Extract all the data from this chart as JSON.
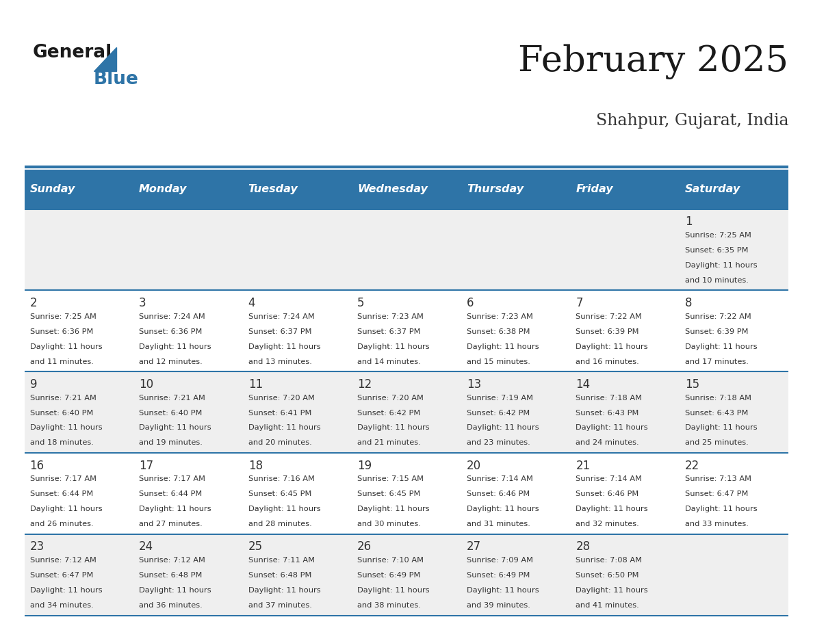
{
  "title": "February 2025",
  "subtitle": "Shahpur, Gujarat, India",
  "header_bg_color": "#2E74A7",
  "header_text_color": "#FFFFFF",
  "day_names": [
    "Sunday",
    "Monday",
    "Tuesday",
    "Wednesday",
    "Thursday",
    "Friday",
    "Saturday"
  ],
  "bg_color": "#FFFFFF",
  "cell_bg_even": "#EFEFEF",
  "cell_bg_odd": "#FFFFFF",
  "separator_color": "#2E74A7",
  "day_num_color": "#333333",
  "info_text_color": "#333333",
  "calendar_data": [
    [
      null,
      null,
      null,
      null,
      null,
      null,
      {
        "day": 1,
        "sunrise": "7:25 AM",
        "sunset": "6:35 PM",
        "daylight_h": "11 hours",
        "daylight_m": "and 10 minutes."
      }
    ],
    [
      {
        "day": 2,
        "sunrise": "7:25 AM",
        "sunset": "6:36 PM",
        "daylight_h": "11 hours",
        "daylight_m": "and 11 minutes."
      },
      {
        "day": 3,
        "sunrise": "7:24 AM",
        "sunset": "6:36 PM",
        "daylight_h": "11 hours",
        "daylight_m": "and 12 minutes."
      },
      {
        "day": 4,
        "sunrise": "7:24 AM",
        "sunset": "6:37 PM",
        "daylight_h": "11 hours",
        "daylight_m": "and 13 minutes."
      },
      {
        "day": 5,
        "sunrise": "7:23 AM",
        "sunset": "6:37 PM",
        "daylight_h": "11 hours",
        "daylight_m": "and 14 minutes."
      },
      {
        "day": 6,
        "sunrise": "7:23 AM",
        "sunset": "6:38 PM",
        "daylight_h": "11 hours",
        "daylight_m": "and 15 minutes."
      },
      {
        "day": 7,
        "sunrise": "7:22 AM",
        "sunset": "6:39 PM",
        "daylight_h": "11 hours",
        "daylight_m": "and 16 minutes."
      },
      {
        "day": 8,
        "sunrise": "7:22 AM",
        "sunset": "6:39 PM",
        "daylight_h": "11 hours",
        "daylight_m": "and 17 minutes."
      }
    ],
    [
      {
        "day": 9,
        "sunrise": "7:21 AM",
        "sunset": "6:40 PM",
        "daylight_h": "11 hours",
        "daylight_m": "and 18 minutes."
      },
      {
        "day": 10,
        "sunrise": "7:21 AM",
        "sunset": "6:40 PM",
        "daylight_h": "11 hours",
        "daylight_m": "and 19 minutes."
      },
      {
        "day": 11,
        "sunrise": "7:20 AM",
        "sunset": "6:41 PM",
        "daylight_h": "11 hours",
        "daylight_m": "and 20 minutes."
      },
      {
        "day": 12,
        "sunrise": "7:20 AM",
        "sunset": "6:42 PM",
        "daylight_h": "11 hours",
        "daylight_m": "and 21 minutes."
      },
      {
        "day": 13,
        "sunrise": "7:19 AM",
        "sunset": "6:42 PM",
        "daylight_h": "11 hours",
        "daylight_m": "and 23 minutes."
      },
      {
        "day": 14,
        "sunrise": "7:18 AM",
        "sunset": "6:43 PM",
        "daylight_h": "11 hours",
        "daylight_m": "and 24 minutes."
      },
      {
        "day": 15,
        "sunrise": "7:18 AM",
        "sunset": "6:43 PM",
        "daylight_h": "11 hours",
        "daylight_m": "and 25 minutes."
      }
    ],
    [
      {
        "day": 16,
        "sunrise": "7:17 AM",
        "sunset": "6:44 PM",
        "daylight_h": "11 hours",
        "daylight_m": "and 26 minutes."
      },
      {
        "day": 17,
        "sunrise": "7:17 AM",
        "sunset": "6:44 PM",
        "daylight_h": "11 hours",
        "daylight_m": "and 27 minutes."
      },
      {
        "day": 18,
        "sunrise": "7:16 AM",
        "sunset": "6:45 PM",
        "daylight_h": "11 hours",
        "daylight_m": "and 28 minutes."
      },
      {
        "day": 19,
        "sunrise": "7:15 AM",
        "sunset": "6:45 PM",
        "daylight_h": "11 hours",
        "daylight_m": "and 30 minutes."
      },
      {
        "day": 20,
        "sunrise": "7:14 AM",
        "sunset": "6:46 PM",
        "daylight_h": "11 hours",
        "daylight_m": "and 31 minutes."
      },
      {
        "day": 21,
        "sunrise": "7:14 AM",
        "sunset": "6:46 PM",
        "daylight_h": "11 hours",
        "daylight_m": "and 32 minutes."
      },
      {
        "day": 22,
        "sunrise": "7:13 AM",
        "sunset": "6:47 PM",
        "daylight_h": "11 hours",
        "daylight_m": "and 33 minutes."
      }
    ],
    [
      {
        "day": 23,
        "sunrise": "7:12 AM",
        "sunset": "6:47 PM",
        "daylight_h": "11 hours",
        "daylight_m": "and 34 minutes."
      },
      {
        "day": 24,
        "sunrise": "7:12 AM",
        "sunset": "6:48 PM",
        "daylight_h": "11 hours",
        "daylight_m": "and 36 minutes."
      },
      {
        "day": 25,
        "sunrise": "7:11 AM",
        "sunset": "6:48 PM",
        "daylight_h": "11 hours",
        "daylight_m": "and 37 minutes."
      },
      {
        "day": 26,
        "sunrise": "7:10 AM",
        "sunset": "6:49 PM",
        "daylight_h": "11 hours",
        "daylight_m": "and 38 minutes."
      },
      {
        "day": 27,
        "sunrise": "7:09 AM",
        "sunset": "6:49 PM",
        "daylight_h": "11 hours",
        "daylight_m": "and 39 minutes."
      },
      {
        "day": 28,
        "sunrise": "7:08 AM",
        "sunset": "6:50 PM",
        "daylight_h": "11 hours",
        "daylight_m": "and 41 minutes."
      },
      null
    ]
  ],
  "logo_text_general": "General",
  "logo_text_blue": "Blue"
}
